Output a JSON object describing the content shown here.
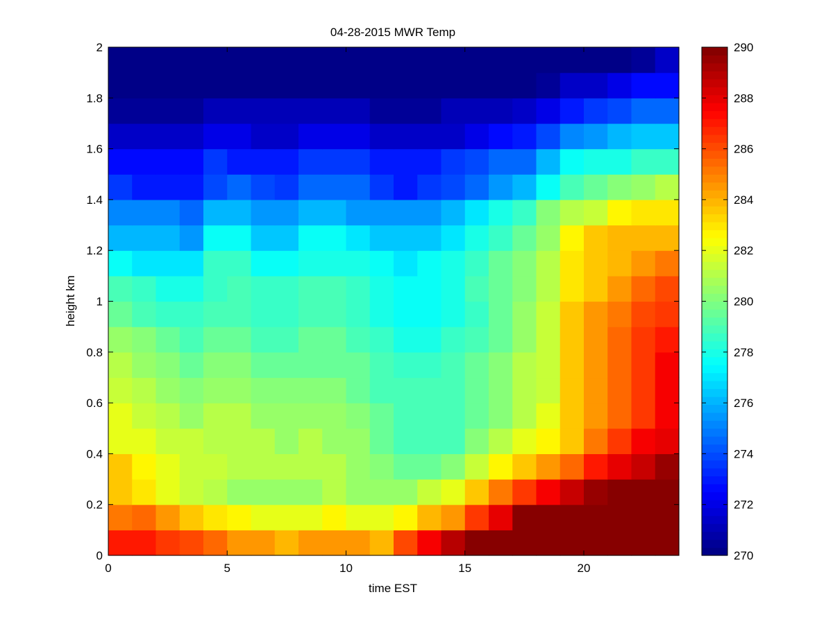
{
  "chart_data": {
    "type": "heatmap",
    "title": "04-28-2015 MWR Temp",
    "xlabel": "time EST",
    "ylabel": "height km",
    "xlim": [
      0,
      24
    ],
    "ylim": [
      0,
      2
    ],
    "x_ticks": [
      0,
      5,
      10,
      15,
      20
    ],
    "y_ticks": [
      0,
      0.2,
      0.4,
      0.6,
      0.8,
      1,
      1.2,
      1.4,
      1.6,
      1.8,
      2
    ],
    "grid": false,
    "colormap": "jet",
    "clim": [
      270,
      290
    ],
    "colorbar_ticks": [
      270,
      272,
      274,
      276,
      278,
      280,
      282,
      284,
      286,
      288,
      290
    ],
    "colorbar_location": "right",
    "x": [
      0,
      1,
      2,
      3,
      4,
      5,
      6,
      7,
      8,
      9,
      10,
      11,
      12,
      13,
      14,
      15,
      16,
      17,
      18,
      19,
      20,
      21,
      22,
      23
    ],
    "y": [
      0,
      0.1,
      0.2,
      0.3,
      0.4,
      0.5,
      0.6,
      0.7,
      0.8,
      0.9,
      1.0,
      1.1,
      1.2,
      1.3,
      1.4,
      1.5,
      1.6,
      1.7,
      1.8,
      1.9
    ],
    "z": [
      [
        287.0,
        287.0,
        286.5,
        286.0,
        285.5,
        284.5,
        284.5,
        284.0,
        284.5,
        284.5,
        284.5,
        284.0,
        286.0,
        287.5,
        289.0,
        290,
        290,
        290,
        290,
        290,
        290,
        290,
        290,
        290
      ],
      [
        285.0,
        285.5,
        284.5,
        283.5,
        283.0,
        282.5,
        282.0,
        282.0,
        282.0,
        282.5,
        282.0,
        282.0,
        282.5,
        284.0,
        284.5,
        286.5,
        288.0,
        290,
        290,
        290,
        290,
        290,
        290,
        290
      ],
      [
        283.5,
        283.0,
        282.0,
        281.5,
        281.0,
        280.5,
        280.5,
        280.5,
        280.5,
        281.0,
        280.5,
        280.5,
        280.5,
        281.5,
        282.0,
        283.5,
        285.0,
        286.5,
        287.5,
        288.5,
        289.5,
        290,
        290,
        290
      ],
      [
        283.5,
        282.5,
        282.0,
        281.5,
        281.5,
        281.0,
        281.0,
        281.0,
        281.0,
        281.0,
        280.5,
        280.0,
        279.5,
        279.5,
        280.0,
        281.5,
        282.5,
        283.5,
        284.5,
        285.5,
        287.0,
        288.0,
        288.5,
        289.5
      ],
      [
        282.0,
        282.0,
        281.5,
        281.5,
        281.0,
        281.0,
        281.0,
        280.5,
        281.0,
        280.5,
        280.5,
        279.5,
        279.0,
        279.0,
        279.0,
        280.0,
        281.0,
        282.0,
        282.5,
        283.5,
        285.0,
        286.5,
        287.5,
        288.0
      ],
      [
        282.0,
        281.5,
        281.0,
        280.5,
        281.0,
        281.0,
        280.5,
        280.5,
        280.5,
        280.5,
        280.0,
        279.5,
        279.0,
        279.0,
        279.0,
        279.5,
        280.0,
        281.0,
        282.0,
        283.5,
        284.5,
        285.5,
        286.5,
        287.5
      ],
      [
        281.5,
        281.0,
        280.5,
        280.0,
        280.5,
        280.5,
        280.0,
        280.0,
        280.0,
        280.0,
        279.5,
        279.0,
        279.0,
        279.0,
        279.0,
        279.5,
        280.0,
        281.0,
        281.5,
        283.5,
        284.5,
        285.5,
        286.5,
        287.5
      ],
      [
        281.0,
        280.5,
        280.0,
        279.5,
        280.0,
        280.0,
        279.5,
        279.5,
        279.5,
        279.5,
        279.5,
        279.0,
        278.5,
        278.5,
        279.0,
        279.5,
        280.0,
        281.0,
        281.5,
        283.5,
        284.5,
        285.5,
        286.5,
        287.5
      ],
      [
        280.5,
        280.0,
        279.5,
        279.0,
        279.5,
        279.5,
        279.0,
        279.0,
        279.5,
        279.5,
        279.0,
        278.5,
        278.0,
        278.0,
        278.5,
        279.0,
        279.5,
        280.5,
        281.5,
        283.5,
        284.5,
        285.5,
        286.5,
        287.0
      ],
      [
        279.5,
        279.0,
        278.5,
        278.5,
        279.0,
        279.0,
        278.5,
        278.5,
        279.0,
        279.0,
        278.5,
        278.0,
        277.5,
        277.5,
        278.0,
        278.5,
        279.5,
        280.5,
        281.5,
        283.5,
        284.5,
        285.0,
        286.0,
        286.5
      ],
      [
        279.0,
        278.5,
        278.0,
        278.0,
        278.5,
        279.0,
        278.5,
        278.5,
        279.0,
        279.0,
        278.5,
        278.0,
        277.5,
        277.5,
        278.0,
        279.0,
        279.5,
        280.0,
        281.0,
        283.0,
        283.5,
        284.5,
        285.5,
        286.0
      ],
      [
        277.5,
        277.0,
        277.0,
        277.0,
        278.5,
        278.5,
        277.5,
        277.5,
        278.0,
        278.0,
        278.0,
        277.5,
        277.0,
        277.5,
        278.0,
        278.5,
        279.5,
        280.0,
        281.0,
        283.0,
        283.5,
        284.0,
        284.5,
        285.0
      ],
      [
        276.0,
        276.0,
        276.0,
        275.5,
        277.5,
        277.5,
        276.5,
        276.5,
        277.5,
        277.5,
        277.0,
        276.5,
        276.5,
        276.5,
        277.0,
        278.0,
        278.5,
        279.5,
        280.5,
        282.5,
        283.5,
        284.0,
        284.0,
        284.0
      ],
      [
        275.0,
        275.0,
        275.0,
        274.5,
        276.0,
        276.0,
        275.5,
        275.5,
        276.0,
        276.0,
        275.5,
        275.5,
        275.5,
        275.5,
        276.0,
        277.0,
        278.0,
        278.5,
        280.0,
        281.0,
        281.5,
        282.5,
        283.0,
        283.0
      ],
      [
        273.5,
        273.0,
        273.0,
        273.0,
        274.0,
        274.5,
        274.0,
        273.5,
        274.5,
        274.5,
        274.5,
        273.5,
        273.0,
        273.5,
        274.0,
        274.5,
        275.5,
        276.0,
        277.5,
        279.0,
        279.5,
        280.0,
        280.5,
        281.0
      ],
      [
        272.5,
        272.5,
        272.5,
        272.5,
        273.5,
        273.0,
        273.0,
        273.0,
        273.5,
        273.5,
        273.5,
        273.0,
        273.0,
        273.0,
        273.5,
        274.0,
        274.5,
        274.5,
        276.0,
        277.5,
        278.0,
        278.0,
        278.5,
        278.5
      ],
      [
        271.5,
        271.5,
        271.5,
        271.5,
        272.0,
        272.0,
        271.5,
        271.5,
        272.0,
        272.0,
        272.0,
        271.5,
        271.5,
        271.5,
        271.5,
        272.0,
        272.5,
        273.0,
        274.0,
        275.0,
        275.5,
        276.0,
        276.5,
        276.5
      ],
      [
        270.5,
        270.5,
        270.5,
        270.5,
        271.0,
        271.0,
        271.0,
        271.0,
        271.0,
        271.0,
        271.0,
        270.5,
        270.5,
        270.5,
        271.0,
        271.0,
        271.0,
        271.5,
        272.0,
        273.0,
        273.5,
        274.0,
        274.5,
        274.5
      ],
      [
        270.0,
        270.0,
        270.0,
        270.0,
        270.0,
        270.0,
        270.0,
        270.0,
        270.0,
        270.0,
        270.0,
        270.0,
        270.0,
        270.0,
        270.0,
        270.0,
        270.0,
        270.0,
        270.5,
        271.5,
        271.5,
        272.0,
        272.5,
        272.5
      ],
      [
        270.0,
        270.0,
        270.0,
        270.0,
        270.0,
        270.0,
        270.0,
        270.0,
        270.0,
        270.0,
        270.0,
        270.0,
        270.0,
        270.0,
        270.0,
        270.0,
        270.0,
        270.0,
        270.0,
        270.0,
        270.0,
        270.0,
        270.5,
        271.5
      ]
    ]
  }
}
